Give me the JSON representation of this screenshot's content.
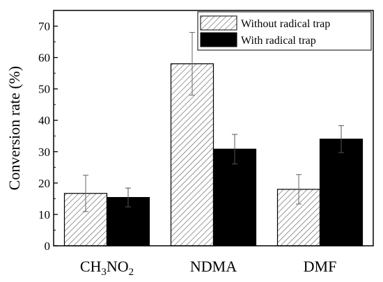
{
  "chart_data": {
    "type": "bar",
    "categories": [
      "CH3NO2",
      "NDMA",
      "DMF"
    ],
    "category_labels": [
      {
        "parts": [
          {
            "t": "CH"
          },
          {
            "t": "3",
            "sub": true
          },
          {
            "t": "NO"
          },
          {
            "t": "2",
            "sub": true
          }
        ]
      },
      {
        "parts": [
          {
            "t": "NDMA"
          }
        ]
      },
      {
        "parts": [
          {
            "t": "DMF"
          }
        ]
      }
    ],
    "series": [
      {
        "name": "Without radical trap",
        "values": [
          16.7,
          58.0,
          18.0
        ],
        "errors": [
          5.8,
          10.0,
          4.7
        ],
        "fill": "hatched"
      },
      {
        "name": "With radical trap",
        "values": [
          15.4,
          30.8,
          34.0
        ],
        "errors": [
          3.0,
          4.7,
          4.3
        ],
        "fill": "solid"
      }
    ],
    "ylabel": "Conversion rate (%)",
    "xlabel": "",
    "ylim": [
      0,
      75
    ],
    "yticks": [
      0,
      10,
      20,
      30,
      40,
      50,
      60,
      70
    ],
    "legend_position": "top-right",
    "grid": false,
    "colors": {
      "solid": "#000000",
      "hatch": "#555555",
      "axis": "#000000"
    }
  }
}
